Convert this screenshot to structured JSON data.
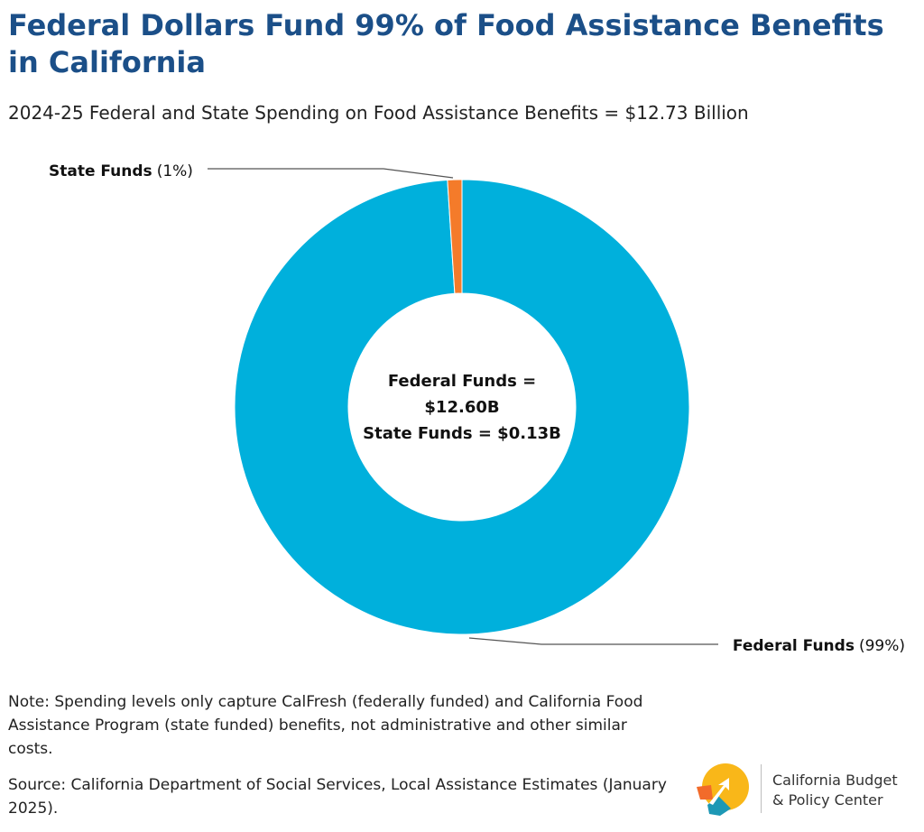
{
  "title": "Federal Dollars Fund 99% of Food Assistance Benefits in California",
  "subtitle": "2024-25 Federal and State Spending on Food Assistance Benefits = $12.73 Billion",
  "chart_data": {
    "type": "pie",
    "variant": "donut",
    "total_billions": 12.73,
    "slices": [
      {
        "name": "Federal Funds",
        "label": "Federal Funds",
        "percent_label": "(99%)",
        "value_billions": 12.6,
        "percent": 99,
        "color": "#00b0dc"
      },
      {
        "name": "State Funds",
        "label": "State Funds",
        "percent_label": "(1%)",
        "value_billions": 0.13,
        "percent": 1,
        "color": "#f47b2a"
      }
    ],
    "center_lines": [
      "Federal Funds =",
      "$12.60B",
      "State Funds = $0.13B"
    ]
  },
  "note": "Note: Spending levels only capture CalFresh (federally funded) and California Food Assistance Program (state funded) benefits, not administrative and other similar costs.",
  "source": "Source: California Department of Social Services, Local Assistance Estimates (January 2025).",
  "logo": {
    "line1": "California Budget",
    "line2": "& Policy Center",
    "colors": {
      "yellow": "#f9b719",
      "orange": "#f26b2a",
      "teal": "#1d98b5"
    }
  }
}
